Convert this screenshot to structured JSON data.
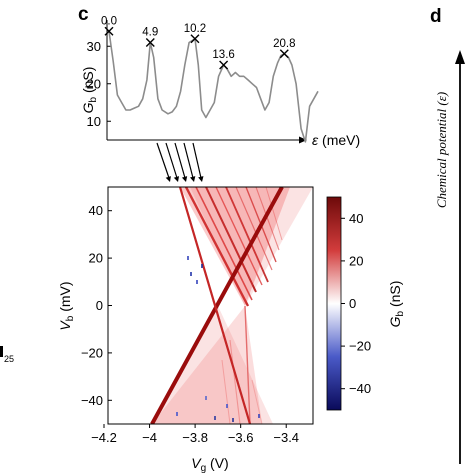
{
  "panels": {
    "c": "c",
    "d": "d",
    "partial_left": "25"
  },
  "chart_data": [
    {
      "type": "line",
      "ylabel": {
        "main": "G",
        "sub": "b",
        "unit": " (nS)"
      },
      "xlabel": {
        "symbol": "ε",
        "unit": " (meV)"
      },
      "yticks": [
        10,
        20,
        30
      ],
      "ylim": [
        5,
        37
      ],
      "x": [
        0,
        0.5,
        1,
        1.5,
        2,
        2.5,
        3,
        3.5,
        4,
        4.5,
        4.9,
        5.3,
        5.8,
        6.3,
        7,
        7.5,
        8,
        8.5,
        9,
        9.5,
        10.2,
        10.6,
        11,
        11.5,
        12,
        12.5,
        13,
        13.6,
        14,
        14.5,
        15,
        15.5,
        16,
        16.5,
        17,
        17.5,
        18,
        18.5,
        19,
        19.5,
        20,
        20.4,
        20.8,
        21.3,
        21.7,
        22.2,
        22.8,
        23.3,
        23.8,
        24.3,
        24.8
      ],
      "series": [
        {
          "values": [
            34,
            26,
            17,
            15,
            13,
            13,
            13.5,
            14,
            16,
            21,
            31,
            27,
            16,
            13,
            12,
            12.5,
            14,
            18,
            25,
            31,
            32,
            25,
            13,
            11,
            13,
            15,
            22,
            25,
            24,
            22,
            23,
            22,
            22,
            21,
            20,
            19,
            16,
            13,
            15,
            22,
            25.5,
            27.5,
            28,
            27,
            25,
            20,
            8,
            4.5,
            14,
            16,
            18
          ]
        }
      ],
      "peaks": [
        {
          "x": 0,
          "y": 34,
          "label": "0.0"
        },
        {
          "x": 4.9,
          "y": 31,
          "label": "4.9"
        },
        {
          "x": 10.2,
          "y": 32,
          "label": "10.2"
        },
        {
          "x": 13.6,
          "y": 25,
          "label": "13.6"
        },
        {
          "x": 20.8,
          "y": 28,
          "label": "20.8"
        }
      ]
    },
    {
      "type": "heatmap",
      "xlabel": {
        "main": "V",
        "sub": "g",
        "unit": " (V)"
      },
      "ylabel": {
        "main": "V",
        "sub": "b",
        "unit": " (mV)"
      },
      "xlim": [
        -4.2,
        -3.3
      ],
      "ylim": [
        -50,
        50
      ],
      "xticks": [
        "−4.2",
        "−4",
        "−3.8",
        "−3.6",
        "−3.4"
      ],
      "xtick_values": [
        -4.2,
        -4.0,
        -3.8,
        -3.6,
        -3.4
      ],
      "yticks": [
        40,
        20,
        0,
        -20,
        -40
      ],
      "diamond": {
        "left_edge": [
          [
            -4.01,
            -50
          ],
          [
            -3.76,
            0
          ],
          [
            -3.53,
            50
          ]
        ],
        "right_edge": [
          [
            -3.86,
            50
          ],
          [
            -3.76,
            0
          ],
          [
            -3.66,
            -50
          ]
        ]
      },
      "arrows_from_peaks": 5,
      "colorbar": {
        "label": {
          "main": "G",
          "sub": "b",
          "unit": " (nS)"
        },
        "ticks": [
          40,
          20,
          0,
          -20,
          -40
        ],
        "range": [
          -50,
          50
        ],
        "colors": {
          "high": "#8b0a0a",
          "mid": "#ffffff",
          "low": "#0a0a6e"
        }
      }
    }
  ],
  "side_axis": {
    "label": "Chemical potential (ε)"
  }
}
